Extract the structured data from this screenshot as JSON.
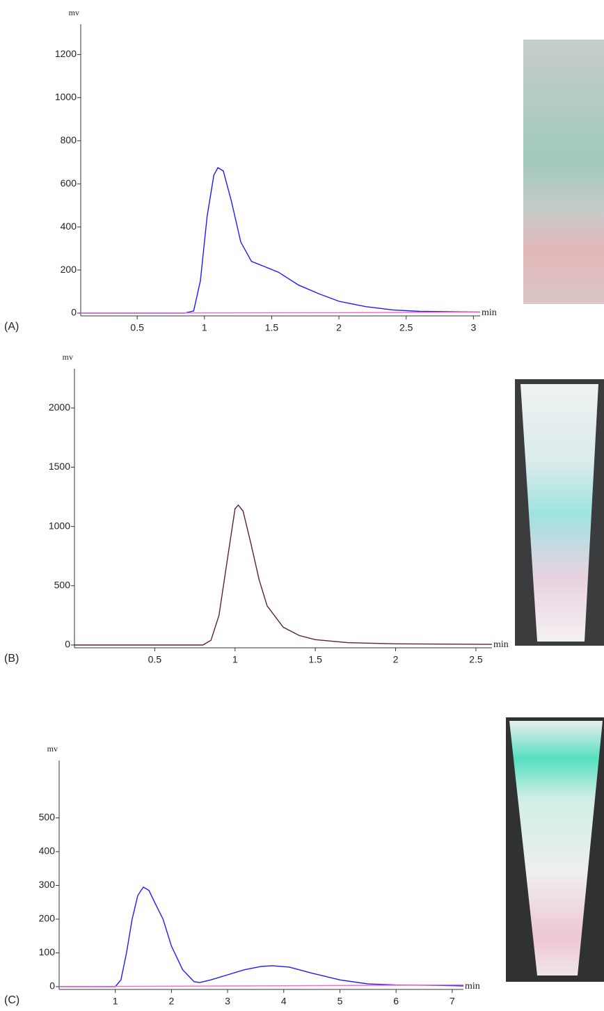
{
  "chart_data": [
    {
      "type": "line",
      "panel_label": "(A)",
      "ylabel": "mv",
      "xlabel": "min",
      "xlim": [
        0.08,
        3.05
      ],
      "xticks": [
        0.5,
        1.0,
        1.5,
        2.0,
        2.5,
        3.0
      ],
      "ylim": [
        0,
        1340
      ],
      "yticks": [
        0,
        200,
        400,
        600,
        800,
        1000,
        1200
      ],
      "series": [
        {
          "color": "#1a1aff",
          "x": [
            0.08,
            0.85,
            0.92,
            0.97,
            1.02,
            1.07,
            1.1,
            1.14,
            1.2,
            1.27,
            1.35,
            1.45,
            1.55,
            1.7,
            1.85,
            2.0,
            2.2,
            2.4,
            2.6,
            3.05
          ],
          "values": [
            0,
            0,
            10,
            150,
            450,
            640,
            675,
            660,
            520,
            330,
            240,
            215,
            190,
            130,
            90,
            55,
            30,
            15,
            8,
            5
          ]
        },
        {
          "color": "#ff66cc",
          "x": [
            0.08,
            2.0,
            3.05
          ],
          "values": [
            0,
            2,
            5
          ]
        }
      ]
    },
    {
      "type": "line",
      "panel_label": "(B)",
      "ylabel": "mv",
      "xlabel": "min",
      "xlim": [
        0,
        2.6
      ],
      "xticks": [
        0.5,
        1.0,
        1.5,
        2.0,
        2.5
      ],
      "ylim": [
        0,
        2330
      ],
      "yticks": [
        0,
        500,
        1000,
        1500,
        2000
      ],
      "series": [
        {
          "color": "#5a2040",
          "x": [
            0,
            0.8,
            0.85,
            0.9,
            0.95,
            1.0,
            1.02,
            1.05,
            1.1,
            1.15,
            1.2,
            1.3,
            1.4,
            1.5,
            1.7,
            2.0,
            2.6
          ],
          "values": [
            0,
            0,
            40,
            250,
            700,
            1150,
            1180,
            1130,
            850,
            550,
            330,
            150,
            80,
            45,
            20,
            10,
            5
          ]
        }
      ]
    },
    {
      "type": "line",
      "panel_label": "(C)",
      "ylabel": "mv",
      "xlabel": "min",
      "xlim": [
        0,
        7.2
      ],
      "xticks": [
        1,
        2,
        3,
        4,
        5,
        6,
        7
      ],
      "ylim": [
        0,
        670
      ],
      "yticks": [
        0,
        100,
        200,
        300,
        400,
        500
      ],
      "series": [
        {
          "color": "#1a1aff",
          "x": [
            0,
            1.0,
            1.1,
            1.2,
            1.3,
            1.4,
            1.5,
            1.6,
            1.7,
            1.85,
            2.0,
            2.2,
            2.4,
            2.5,
            2.7,
            3.0,
            3.3,
            3.6,
            3.8,
            4.1,
            4.5,
            5.0,
            5.5,
            6.0,
            7.0,
            7.2
          ],
          "values": [
            0,
            0,
            20,
            100,
            200,
            270,
            295,
            285,
            250,
            200,
            120,
            50,
            15,
            12,
            20,
            35,
            50,
            60,
            62,
            58,
            40,
            20,
            8,
            5,
            3,
            2
          ]
        },
        {
          "color": "#ff66cc",
          "x": [
            0,
            3.0,
            7.2
          ],
          "values": [
            0,
            2,
            5
          ]
        }
      ]
    }
  ]
}
